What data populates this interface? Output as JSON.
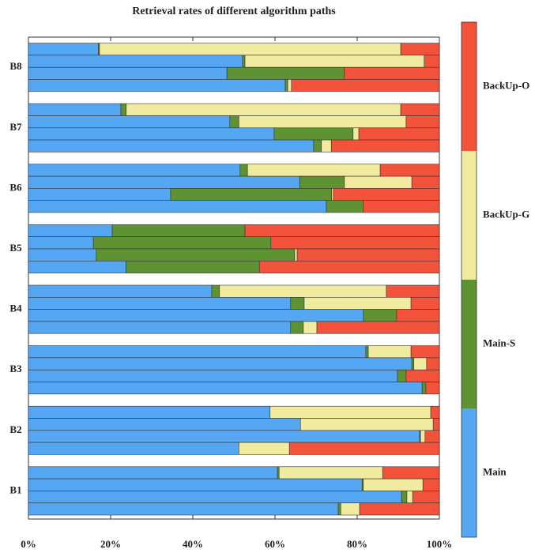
{
  "chart_data": {
    "type": "grouped-stacked-barh",
    "title": "Retrieval rates of different algorithm paths",
    "categories": [
      "B1",
      "B2",
      "B3",
      "B4",
      "B5",
      "B6",
      "B7",
      "B8"
    ],
    "series": [
      {
        "name": "Main",
        "color": "#55a6f3",
        "values": [
          [
            60.6,
            81.2,
            90.8,
            75.4
          ],
          [
            58.8,
            66.2,
            95.2,
            51.2
          ],
          [
            82.1,
            93.3,
            89.8,
            95.8
          ],
          [
            44.6,
            63.8,
            81.5,
            63.8
          ],
          [
            20.4,
            15.8,
            16.5,
            23.7
          ],
          [
            51.5,
            66,
            34.6,
            72.5
          ],
          [
            22.5,
            49,
            59.8,
            69.4
          ],
          [
            17,
            52.1,
            48.3,
            62.5
          ]
        ]
      },
      {
        "name": "Main-S",
        "color": "#5f9233",
        "values": [
          [
            0.4,
            0.3,
            1.3,
            0.6
          ],
          [
            0,
            0,
            0.2,
            0
          ],
          [
            0.6,
            0.5,
            2.1,
            0.9
          ],
          [
            1.9,
            3.3,
            8.1,
            3.1
          ],
          [
            32.3,
            43.2,
            48.3,
            32.5
          ],
          [
            1.8,
            10.9,
            39.2,
            9
          ],
          [
            1.3,
            2.2,
            19.2,
            1.9
          ],
          [
            0.3,
            0.6,
            28.6,
            0.6
          ]
        ]
      },
      {
        "name": "BackUp-G",
        "color": "#f1eba0",
        "values": [
          [
            25.2,
            14.5,
            1.4,
            4.6
          ],
          [
            39.1,
            32.3,
            1.1,
            12.3
          ],
          [
            10.4,
            3.1,
            0,
            0
          ],
          [
            40.6,
            26,
            0,
            3.3
          ],
          [
            0,
            0,
            0.6,
            0
          ],
          [
            32.3,
            16.4,
            0.4,
            0
          ],
          [
            66.8,
            40.7,
            1.4,
            2.4
          ],
          [
            73.3,
            43.6,
            0,
            0.9
          ]
        ]
      },
      {
        "name": "BackUp-O",
        "color": "#f2533a",
        "values": [
          [
            13.8,
            4,
            6.5,
            19.4
          ],
          [
            2.1,
            1.5,
            3.5,
            36.5
          ],
          [
            6.9,
            3.1,
            8.1,
            3.3
          ],
          [
            12.9,
            6.9,
            10.4,
            29.8
          ],
          [
            47.3,
            41,
            34.6,
            43.8
          ],
          [
            14.4,
            6.7,
            25.8,
            18.5
          ],
          [
            9.4,
            8.1,
            19.6,
            26.3
          ],
          [
            9.4,
            3.7,
            23.1,
            36
          ]
        ]
      }
    ],
    "xlim": [
      0,
      100
    ],
    "xticks": [
      {
        "value": 0,
        "label": "0%"
      },
      {
        "value": 20,
        "label": "20%"
      },
      {
        "value": 40,
        "label": "40%"
      },
      {
        "value": 60,
        "label": "60%"
      },
      {
        "value": 80,
        "label": "80%"
      },
      {
        "value": 100,
        "label": "100%"
      }
    ]
  }
}
